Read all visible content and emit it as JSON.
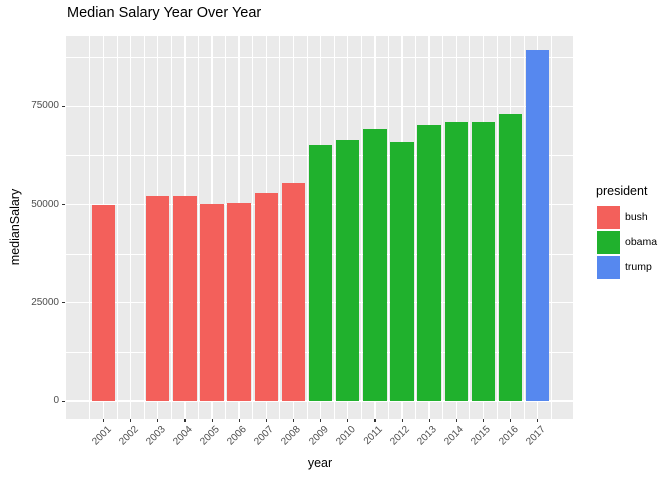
{
  "title": "Median Salary Year Over Year",
  "chart_data": {
    "type": "bar",
    "title": "Median Salary Year Over Year",
    "xlabel": "year",
    "ylabel": "medianSalary",
    "categories": [
      "2001",
      "2002",
      "2003",
      "2004",
      "2005",
      "2006",
      "2007",
      "2008",
      "2009",
      "2010",
      "2011",
      "2012",
      "2013",
      "2014",
      "2015",
      "2016",
      "2017"
    ],
    "values": [
      50000,
      null,
      52300,
      52300,
      50200,
      50500,
      53000,
      55500,
      65200,
      66500,
      69300,
      65800,
      70200,
      71000,
      71000,
      73000,
      89300
    ],
    "groups": [
      "bush",
      "bush",
      "bush",
      "bush",
      "bush",
      "bush",
      "bush",
      "bush",
      "obama",
      "obama",
      "obama",
      "obama",
      "obama",
      "obama",
      "obama",
      "obama",
      "trump"
    ],
    "y_tick_labels": [
      "0",
      "25000",
      "50000",
      "75000"
    ],
    "y_ticks": [
      0,
      25000,
      50000,
      75000
    ],
    "y_minor_ticks": [
      12500,
      37500,
      62500,
      87500
    ],
    "ylim": [
      -4600,
      92900
    ],
    "grid": "on",
    "legend_position": "right",
    "legend": {
      "title": "president",
      "entries": [
        {
          "label": "bush",
          "color": "#F3605B"
        },
        {
          "label": "obama",
          "color": "#20B12D"
        },
        {
          "label": "trump",
          "color": "#5688EF"
        }
      ]
    },
    "colors": {
      "panel_background": "#EAEAEA",
      "gridline": "#FFFFFF",
      "tick_label": "#4D4D4D",
      "tick_mark": "#333333",
      "text": "#000000"
    }
  }
}
